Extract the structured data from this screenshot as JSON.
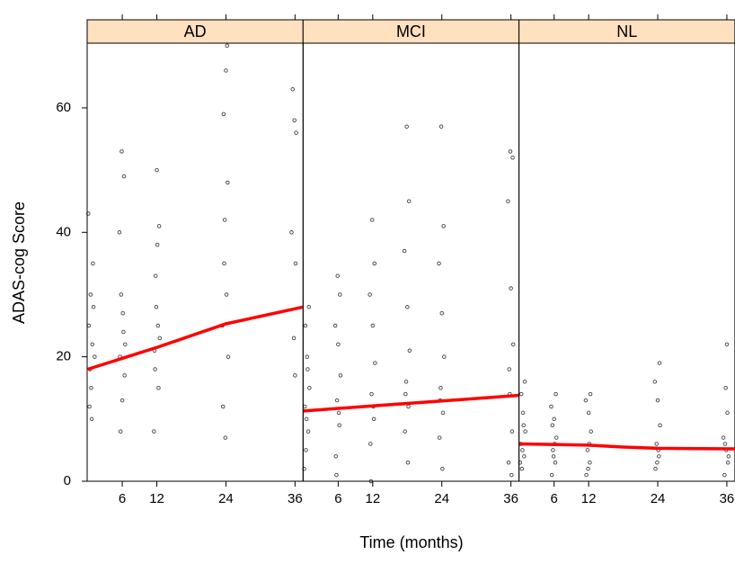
{
  "chart_data": [
    {
      "type": "scatter",
      "title": "AD",
      "ylabel": "ADAS-cog Score",
      "xlabel": "Time (months)",
      "xlim": [
        -0.1,
        37.4
      ],
      "ylim": [
        0,
        70.4
      ],
      "xticks": [
        6,
        12,
        24,
        36
      ],
      "yticks": [
        0,
        20,
        40,
        60
      ],
      "series": [
        {
          "kind": "points",
          "color": "#000000",
          "x": [
            0.4,
            0.8,
            0.2,
            1.0,
            0.6,
            0.3,
            0.9,
            0.1,
            0.5,
            0.7,
            1.2,
            5.6,
            6.2,
            5.8,
            6.4,
            6.0,
            5.5,
            6.3,
            5.9,
            6.1,
            5.7,
            6.5,
            11.6,
            12.2,
            11.8,
            12.4,
            12.0,
            11.5,
            12.3,
            11.9,
            12.1,
            11.7,
            12.5,
            23.4,
            24.1,
            23.8,
            24.3,
            23.6,
            24.0,
            24.2,
            23.9,
            23.5,
            24.4,
            23.7,
            35.6,
            36.2,
            35.9,
            35.4,
            36.1,
            35.8,
            36.0
          ],
          "values": [
            18,
            22,
            25,
            28,
            15,
            12,
            35,
            43,
            30,
            10,
            20,
            20,
            24,
            30,
            17,
            13,
            40,
            49,
            53,
            27,
            8,
            22,
            21,
            25,
            33,
            41,
            50,
            8,
            15,
            28,
            38,
            18,
            23,
            25,
            30,
            42,
            48,
            59,
            66,
            70,
            7,
            12,
            20,
            35,
            63,
            56,
            58,
            40,
            35,
            23,
            17
          ]
        },
        {
          "kind": "line",
          "color": "#ff0000",
          "x": [
            0,
            12,
            24,
            37.4
          ],
          "values": [
            18,
            21.5,
            25.3,
            28
          ]
        }
      ]
    },
    {
      "type": "scatter",
      "title": "MCI",
      "xlim": [
        -0.1,
        37.4
      ],
      "ylim": [
        0,
        70.4
      ],
      "xticks": [
        6,
        12,
        24,
        36
      ],
      "series": [
        {
          "kind": "points",
          "color": "#000000",
          "x": [
            0.4,
            0.8,
            0.2,
            1.0,
            0.6,
            0.3,
            0.9,
            0.1,
            0.5,
            0.7,
            5.6,
            6.2,
            5.8,
            6.4,
            6.0,
            5.5,
            6.3,
            5.9,
            6.1,
            5.7,
            11.6,
            12.2,
            11.8,
            12.4,
            12.0,
            11.5,
            12.3,
            11.9,
            12.1,
            11.7,
            17.6,
            18.2,
            17.8,
            18.4,
            18.0,
            17.5,
            18.3,
            17.9,
            18.1,
            17.7,
            23.6,
            24.2,
            23.8,
            24.4,
            24.0,
            23.5,
            24.3,
            23.9,
            24.1,
            23.7,
            35.6,
            36.2,
            35.8,
            36.4,
            36.0,
            35.5,
            36.3,
            35.9,
            36.1,
            35.7
          ],
          "values": [
            5,
            8,
            12,
            15,
            20,
            25,
            28,
            2,
            10,
            18,
            4,
            9,
            13,
            17,
            22,
            25,
            30,
            33,
            11,
            1,
            6,
            10,
            14,
            19,
            25,
            30,
            35,
            42,
            12,
            0,
            8,
            12,
            16,
            21,
            28,
            37,
            45,
            57,
            3,
            14,
            7,
            11,
            15,
            20,
            27,
            35,
            41,
            57,
            2,
            13,
            3,
            8,
            14,
            22,
            31,
            45,
            52,
            53,
            1,
            18
          ]
        },
        {
          "kind": "line",
          "color": "#ff0000",
          "x": [
            0,
            12,
            24,
            37.4
          ],
          "values": [
            11.3,
            12.1,
            12.9,
            13.8
          ]
        }
      ]
    },
    {
      "type": "scatter",
      "title": "NL",
      "xlim": [
        -0.1,
        37.4
      ],
      "ylim": [
        0,
        70.4
      ],
      "xticks": [
        6,
        12,
        24,
        36
      ],
      "series": [
        {
          "kind": "points",
          "color": "#000000",
          "x": [
            0.4,
            0.8,
            0.2,
            1.0,
            0.6,
            0.3,
            0.9,
            0.1,
            0.5,
            0.7,
            5.6,
            6.2,
            5.8,
            6.4,
            6.0,
            5.5,
            6.3,
            5.9,
            6.1,
            5.7,
            11.6,
            12.2,
            11.8,
            12.4,
            12.0,
            11.5,
            12.3,
            11.9,
            12.1,
            23.6,
            24.2,
            23.8,
            24.4,
            24.0,
            23.5,
            24.3,
            23.9,
            24.1,
            35.6,
            36.2,
            35.9,
            35.4,
            36.1,
            35.8,
            36.0,
            36.3,
            35.7
          ],
          "values": [
            2,
            4,
            6,
            8,
            11,
            14,
            16,
            3,
            5,
            9,
            1,
            3,
            5,
            7,
            10,
            12,
            14,
            4,
            6,
            9,
            1,
            3,
            5,
            8,
            11,
            13,
            14,
            2,
            6,
            2,
            4,
            6,
            9,
            13,
            16,
            19,
            3,
            5,
            1,
            3,
            5,
            7,
            11,
            15,
            22,
            4,
            6
          ]
        },
        {
          "kind": "line",
          "color": "#ff0000",
          "x": [
            0,
            12,
            18,
            24,
            37.4
          ],
          "values": [
            6,
            5.8,
            5.5,
            5.3,
            5.2
          ]
        }
      ]
    }
  ]
}
